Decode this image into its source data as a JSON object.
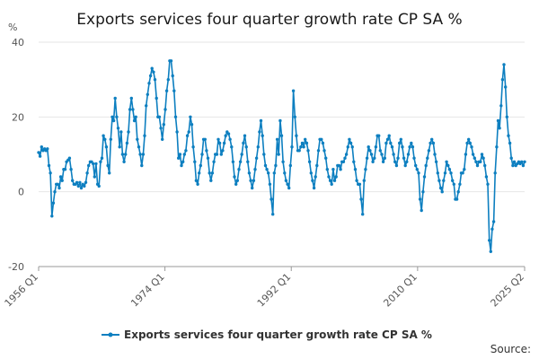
{
  "chart_data": {
    "type": "line",
    "title": "Exports services four quarter growth rate CP SA %",
    "ylabel": "%",
    "xlabel": "",
    "ylim": [
      -20,
      40
    ],
    "yticks": [
      -20,
      0,
      20,
      40
    ],
    "x_start": "1956 Q1",
    "x_end": "2025 Q2",
    "xticks": [
      "1956 Q1",
      "1974 Q1",
      "1992 Q1",
      "2010 Q1",
      "2025 Q2"
    ],
    "series": [
      {
        "name": "Exports services four quarter growth rate CP SA %",
        "color": "#0d7fc0",
        "values": [
          10.5,
          9.5,
          12,
          11,
          11.5,
          11,
          11.5,
          7,
          5,
          -6.5,
          -3,
          0,
          2,
          2,
          1,
          4,
          3,
          6,
          6,
          8,
          8.5,
          9,
          6,
          3,
          2,
          2,
          2.5,
          1.5,
          2.5,
          1,
          2,
          1.5,
          2.5,
          5,
          7,
          8,
          8,
          7.5,
          4,
          7.5,
          2,
          1.5,
          8,
          9,
          15,
          14,
          12,
          7,
          5,
          14,
          20,
          19,
          25,
          20,
          17,
          12,
          16,
          10,
          8,
          10,
          13,
          16,
          22,
          25,
          22,
          19,
          20,
          14,
          12,
          10,
          7,
          10,
          15,
          23,
          26,
          29,
          31,
          33,
          32,
          30,
          25,
          20,
          20,
          17,
          14,
          18,
          22,
          27,
          30,
          35,
          35,
          31,
          27,
          20,
          16,
          9,
          10,
          7,
          8,
          10,
          11,
          15,
          16,
          20,
          18,
          12,
          8,
          3,
          2,
          5,
          7,
          10,
          14,
          14,
          11,
          9,
          5,
          3,
          5,
          8,
          10,
          10,
          14,
          13,
          10,
          11,
          13,
          15,
          16,
          15.5,
          14,
          12,
          8,
          4,
          2,
          3,
          6,
          8,
          10,
          13,
          15,
          12,
          8,
          5,
          3,
          1,
          3,
          6,
          9,
          12,
          16,
          19,
          15,
          10,
          7,
          6,
          5,
          2,
          -2,
          -6,
          5,
          7,
          14,
          10,
          19,
          15,
          8,
          5,
          3,
          2,
          1,
          7,
          12,
          27,
          20,
          15,
          11,
          11,
          12,
          13,
          12,
          14,
          13,
          11,
          8,
          5,
          3,
          1,
          4,
          7,
          11,
          14,
          14,
          13,
          11,
          9,
          6,
          4,
          3,
          2,
          6,
          3,
          4,
          7,
          7,
          6,
          8,
          8,
          9,
          10,
          12,
          14,
          13,
          12,
          8,
          6,
          3,
          2,
          2,
          -2,
          -6,
          3,
          6,
          9,
          12,
          11,
          10,
          8,
          9,
          12,
          15,
          15,
          11,
          10,
          8,
          9,
          13,
          14,
          15,
          13,
          12,
          10,
          8,
          7,
          9,
          13,
          14,
          12,
          9,
          7,
          8,
          10,
          12,
          13,
          12,
          9,
          7,
          6,
          5,
          -2,
          -5,
          0,
          4,
          7,
          9,
          11,
          13,
          14,
          13,
          10,
          8,
          5,
          3,
          1,
          0,
          3,
          5,
          8,
          7,
          6,
          5,
          3,
          2,
          -2,
          -2,
          0,
          2,
          5,
          5,
          6,
          10,
          13,
          14,
          13,
          12,
          10,
          9,
          8,
          7,
          8,
          8,
          10,
          9,
          7,
          4,
          2,
          -13,
          -16,
          -10,
          -8,
          5,
          12,
          19,
          17,
          23,
          30,
          34,
          28,
          20,
          15,
          13,
          9,
          7,
          8,
          7,
          7.5,
          8,
          7.5,
          8,
          7,
          8
        ]
      }
    ],
    "legend": "Exports services four quarter growth rate CP SA %",
    "legend_position": "bottom",
    "source_label": "Source:"
  }
}
